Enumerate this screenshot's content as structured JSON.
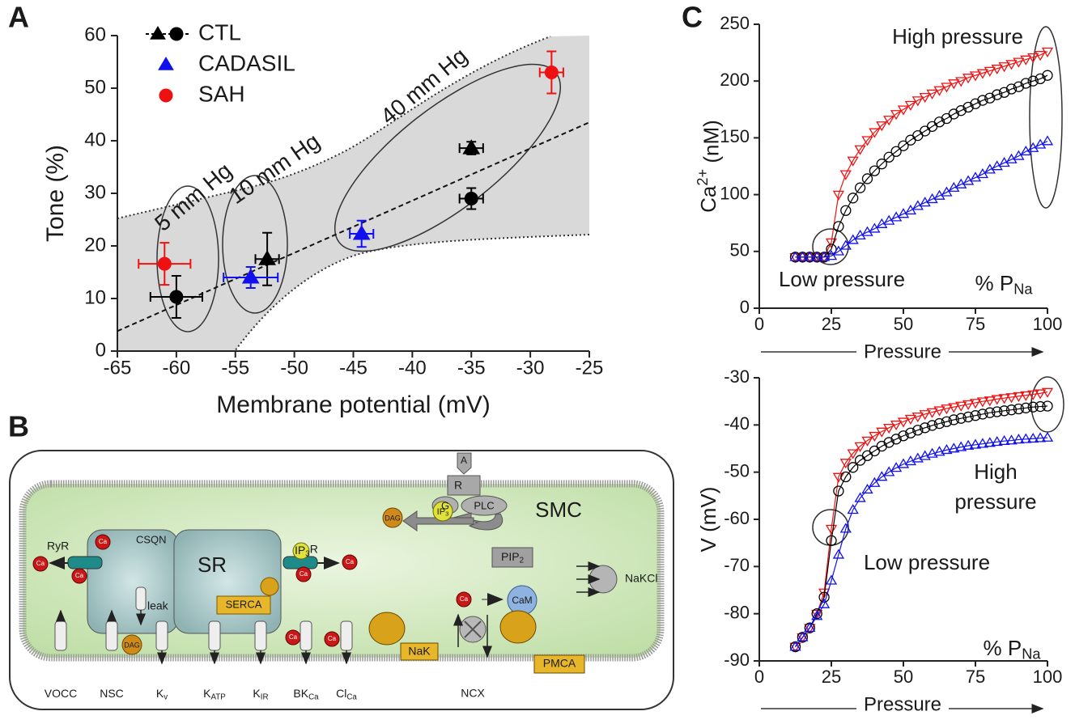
{
  "panel_labels": {
    "a": "A",
    "b": "B",
    "c": "C"
  },
  "chart_data": [
    {
      "type": "scatter",
      "xlabel": "Membrane potential (mV)",
      "ylabel": "Tone (%)",
      "xlim": [
        -65,
        -25
      ],
      "xticks": [
        -65,
        -60,
        -55,
        -50,
        -45,
        -40,
        -35,
        -30,
        -25
      ],
      "ylim": [
        0,
        60
      ],
      "yticks": [
        0,
        10,
        20,
        30,
        40,
        50,
        60
      ],
      "series": [
        {
          "name": "CTL",
          "color": "#000000",
          "markers": [
            "circle",
            "circle",
            "triangle",
            "triangle"
          ],
          "x": [
            -60,
            -35,
            -52.3,
            -35
          ],
          "y": [
            10.3,
            29,
            17.5,
            38.6
          ],
          "xerr": [
            2.2,
            1,
            1,
            1
          ],
          "yerr": [
            4,
            2,
            5,
            1.2
          ]
        },
        {
          "name": "CADASIL",
          "color": "#1010ee",
          "markers": [
            "triangle",
            "triangle"
          ],
          "x": [
            -53.7,
            -44.3
          ],
          "y": [
            14,
            22.3
          ],
          "xerr": [
            2.3,
            1
          ],
          "yerr": [
            2,
            2.5
          ]
        },
        {
          "name": "SAH",
          "color": "#ee1111",
          "markers": [
            "circle",
            "circle"
          ],
          "x": [
            -61,
            -28.2
          ],
          "y": [
            16.6,
            53
          ],
          "xerr": [
            2.2,
            1
          ],
          "yerr": [
            4,
            4
          ]
        }
      ],
      "fit": {
        "x": [
          -65,
          -25
        ],
        "y": [
          3.8,
          43.5
        ]
      },
      "annotations": [
        "5 mm Hg",
        "10 mm Hg",
        "40 mm Hg"
      ]
    },
    {
      "type": "line",
      "ylabel": {
        "text": "Ca",
        "sup": "2+",
        "after": " (nM)"
      },
      "xlabel": "Pressure",
      "xlim": [
        0,
        100
      ],
      "xticks": [
        0,
        25,
        50,
        75,
        100
      ],
      "ylim": [
        0,
        250
      ],
      "yticks": [
        0,
        50,
        100,
        150,
        200,
        250
      ],
      "x": [
        12.5,
        15,
        17.5,
        20,
        22.5,
        25,
        27.5,
        30,
        32.5,
        35,
        37.5,
        40,
        42.5,
        45,
        47.5,
        50,
        52.5,
        55,
        57.5,
        60,
        62.5,
        65,
        67.5,
        70,
        72.5,
        75,
        77.5,
        80,
        82.5,
        85,
        87.5,
        90,
        92.5,
        95,
        97.5,
        100
      ],
      "series": [
        {
          "color": "#ee1111",
          "marker": "triangle-down",
          "values": [
            45,
            45,
            45,
            45,
            45,
            58,
            100,
            118,
            130,
            140,
            148,
            155,
            161,
            166,
            171,
            175,
            179,
            183,
            186,
            189,
            192,
            195,
            198,
            200,
            203,
            205,
            207,
            209,
            211,
            213,
            215,
            217,
            219,
            221,
            223,
            226
          ]
        },
        {
          "color": "#000000",
          "marker": "circle",
          "values": [
            45,
            45,
            45,
            45,
            45,
            52,
            72,
            86,
            97,
            106,
            114,
            121,
            127,
            133,
            138,
            143,
            148,
            152,
            156,
            160,
            164,
            167,
            171,
            174,
            177,
            180,
            183,
            185,
            188,
            190,
            193,
            195,
            198,
            200,
            202,
            205
          ]
        },
        {
          "color": "#1010ee",
          "marker": "triangle-up",
          "values": [
            45,
            45,
            45,
            45,
            45,
            46,
            50,
            55,
            60,
            64,
            67,
            70,
            74,
            77,
            80,
            83,
            86,
            90,
            93,
            96,
            99,
            102,
            106,
            109,
            112,
            115,
            118,
            122,
            125,
            128,
            131,
            134,
            138,
            141,
            144,
            147
          ]
        }
      ],
      "annotations": {
        "high": "High pressure",
        "low": "Low pressure",
        "pna": {
          "text": "% P",
          "sub": "Na"
        }
      }
    },
    {
      "type": "line",
      "ylabel": "V (mV)",
      "xlabel": "Pressure",
      "xlim": [
        0,
        100
      ],
      "xticks": [
        0,
        25,
        50,
        75,
        100
      ],
      "ylim": [
        -90,
        -30
      ],
      "yticks": [
        -90,
        -80,
        -70,
        -60,
        -50,
        -40,
        -30
      ],
      "x": [
        12.5,
        15,
        17.5,
        20,
        22.5,
        25,
        27.5,
        30,
        32.5,
        35,
        37.5,
        40,
        42.5,
        45,
        47.5,
        50,
        52.5,
        55,
        57.5,
        60,
        62.5,
        65,
        67.5,
        70,
        72.5,
        75,
        77.5,
        80,
        82.5,
        85,
        87.5,
        90,
        92.5,
        95,
        97.5,
        100
      ],
      "series": [
        {
          "color": "#ee1111",
          "marker": "triangle-down",
          "values": [
            -87,
            -85,
            -83,
            -80,
            -75.5,
            -62,
            -51,
            -48,
            -46,
            -44.5,
            -43.3,
            -42.3,
            -41.4,
            -40.6,
            -39.9,
            -39.3,
            -38.7,
            -38.2,
            -37.7,
            -37.3,
            -36.9,
            -36.5,
            -36.2,
            -35.9,
            -35.6,
            -35.3,
            -35,
            -34.8,
            -34.5,
            -34.3,
            -34.1,
            -33.9,
            -33.7,
            -33.5,
            -33.3,
            -33
          ]
        },
        {
          "color": "#000000",
          "marker": "circle",
          "values": [
            -87,
            -85,
            -83,
            -80,
            -76.5,
            -64.5,
            -54,
            -51,
            -49,
            -47.5,
            -46.5,
            -45.5,
            -44.5,
            -43.7,
            -43,
            -42.3,
            -41.7,
            -41.1,
            -40.6,
            -40.1,
            -39.7,
            -39.3,
            -38.9,
            -38.6,
            -38.3,
            -38,
            -37.7,
            -37.4,
            -37.2,
            -37,
            -36.8,
            -36.6,
            -36.4,
            -36.2,
            -36.1,
            -36
          ]
        },
        {
          "color": "#1010ee",
          "marker": "triangle-up",
          "values": [
            -87,
            -85,
            -83,
            -80.5,
            -78,
            -73,
            -67.5,
            -62,
            -58,
            -55.5,
            -53.7,
            -52.3,
            -51,
            -50,
            -49.1,
            -48.3,
            -47.7,
            -47.1,
            -46.6,
            -46.1,
            -45.7,
            -45.3,
            -45,
            -44.7,
            -44.4,
            -44.2,
            -44,
            -43.8,
            -43.6,
            -43.4,
            -43.3,
            -43.1,
            -43,
            -42.9,
            -42.8,
            -42.7
          ]
        }
      ],
      "annotations": {
        "high": [
          "High",
          "pressure"
        ],
        "low": "Low pressure",
        "pna": {
          "text": "% P",
          "sub": "Na"
        }
      }
    }
  ],
  "diagram": {
    "cell": "SMC",
    "sr": "SR",
    "ryr": "RyR",
    "csqn": "CSQN",
    "ip3r": {
      "text": "IP",
      "sub": "3",
      "after": "R"
    },
    "leak": "leak",
    "serca": "SERCA",
    "dag": "DAG",
    "ip3": {
      "text": "IP",
      "sub": "3"
    },
    "pip2": {
      "text": "PIP",
      "sub": "2"
    },
    "agonist": "A",
    "receptor": "R",
    "gprotein": "G",
    "plc": "PLC",
    "ca": "Ca",
    "cam": "CaM",
    "nakcl": "NaKCl",
    "nak": "NaK",
    "pmca": "PMCA",
    "ncx": "NCX",
    "channels": [
      {
        "text": "VOCC"
      },
      {
        "text": "NSC"
      },
      {
        "text": "K",
        "sub": "v"
      },
      {
        "text": "K",
        "sub": "ATP"
      },
      {
        "text": "K",
        "sub": "IR"
      },
      {
        "text": "BK",
        "sub": "Ca"
      },
      {
        "text": "Cl",
        "sub": "Ca"
      }
    ]
  }
}
